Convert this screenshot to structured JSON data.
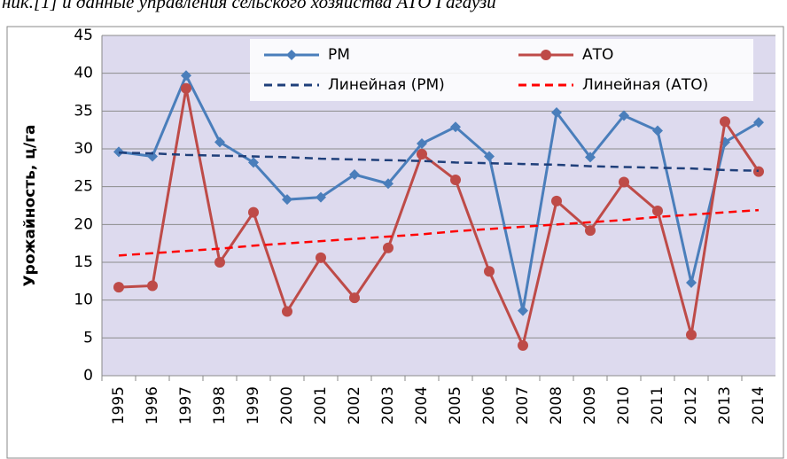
{
  "caption": "ник.[1] и данные управления сельского хозяйства АТО Гагаузи",
  "chart_data": {
    "type": "line",
    "y_label": "Урожайность, ц/га",
    "categories": [
      "1995",
      "1996",
      "1997",
      "1998",
      "1999",
      "2000",
      "2001",
      "2002",
      "2003",
      "2004",
      "2005",
      "2006",
      "2007",
      "2008",
      "2009",
      "2010",
      "2011",
      "2012",
      "2013",
      "2014"
    ],
    "series": [
      {
        "name": "РМ",
        "color": "#4a7ebb",
        "marker": "diamond",
        "values": [
          29.6,
          29.0,
          39.7,
          30.9,
          28.2,
          23.3,
          23.6,
          26.6,
          25.4,
          30.7,
          32.9,
          29.0,
          8.6,
          34.8,
          28.9,
          34.4,
          32.4,
          12.3,
          30.9,
          33.5
        ]
      },
      {
        "name": "АТО",
        "color": "#be4b48",
        "marker": "circle",
        "values": [
          11.7,
          11.9,
          38.0,
          15.0,
          21.6,
          8.5,
          15.6,
          10.3,
          16.9,
          29.3,
          25.9,
          13.8,
          4.0,
          23.1,
          19.2,
          25.6,
          21.8,
          5.4,
          33.6,
          27.0
        ]
      },
      {
        "name": "Линейная (РМ)",
        "color": "#1f3f7a",
        "dashed": true,
        "values": [
          29.5,
          29.4,
          29.2,
          29.1,
          29.0,
          28.9,
          28.7,
          28.6,
          28.5,
          28.4,
          28.2,
          28.1,
          28.0,
          27.9,
          27.7,
          27.6,
          27.5,
          27.4,
          27.2,
          27.1
        ]
      },
      {
        "name": "Линейная (АТО)",
        "color": "#ff0000",
        "dashed": true,
        "values": [
          15.9,
          16.2,
          16.5,
          16.8,
          17.2,
          17.5,
          17.8,
          18.1,
          18.4,
          18.7,
          19.1,
          19.4,
          19.7,
          20.0,
          20.3,
          20.6,
          21.0,
          21.3,
          21.6,
          21.9
        ]
      }
    ],
    "ylim": [
      0,
      45
    ],
    "yticks": [
      0,
      5,
      10,
      15,
      20,
      25,
      30,
      35,
      40,
      45
    ],
    "grid": true
  }
}
